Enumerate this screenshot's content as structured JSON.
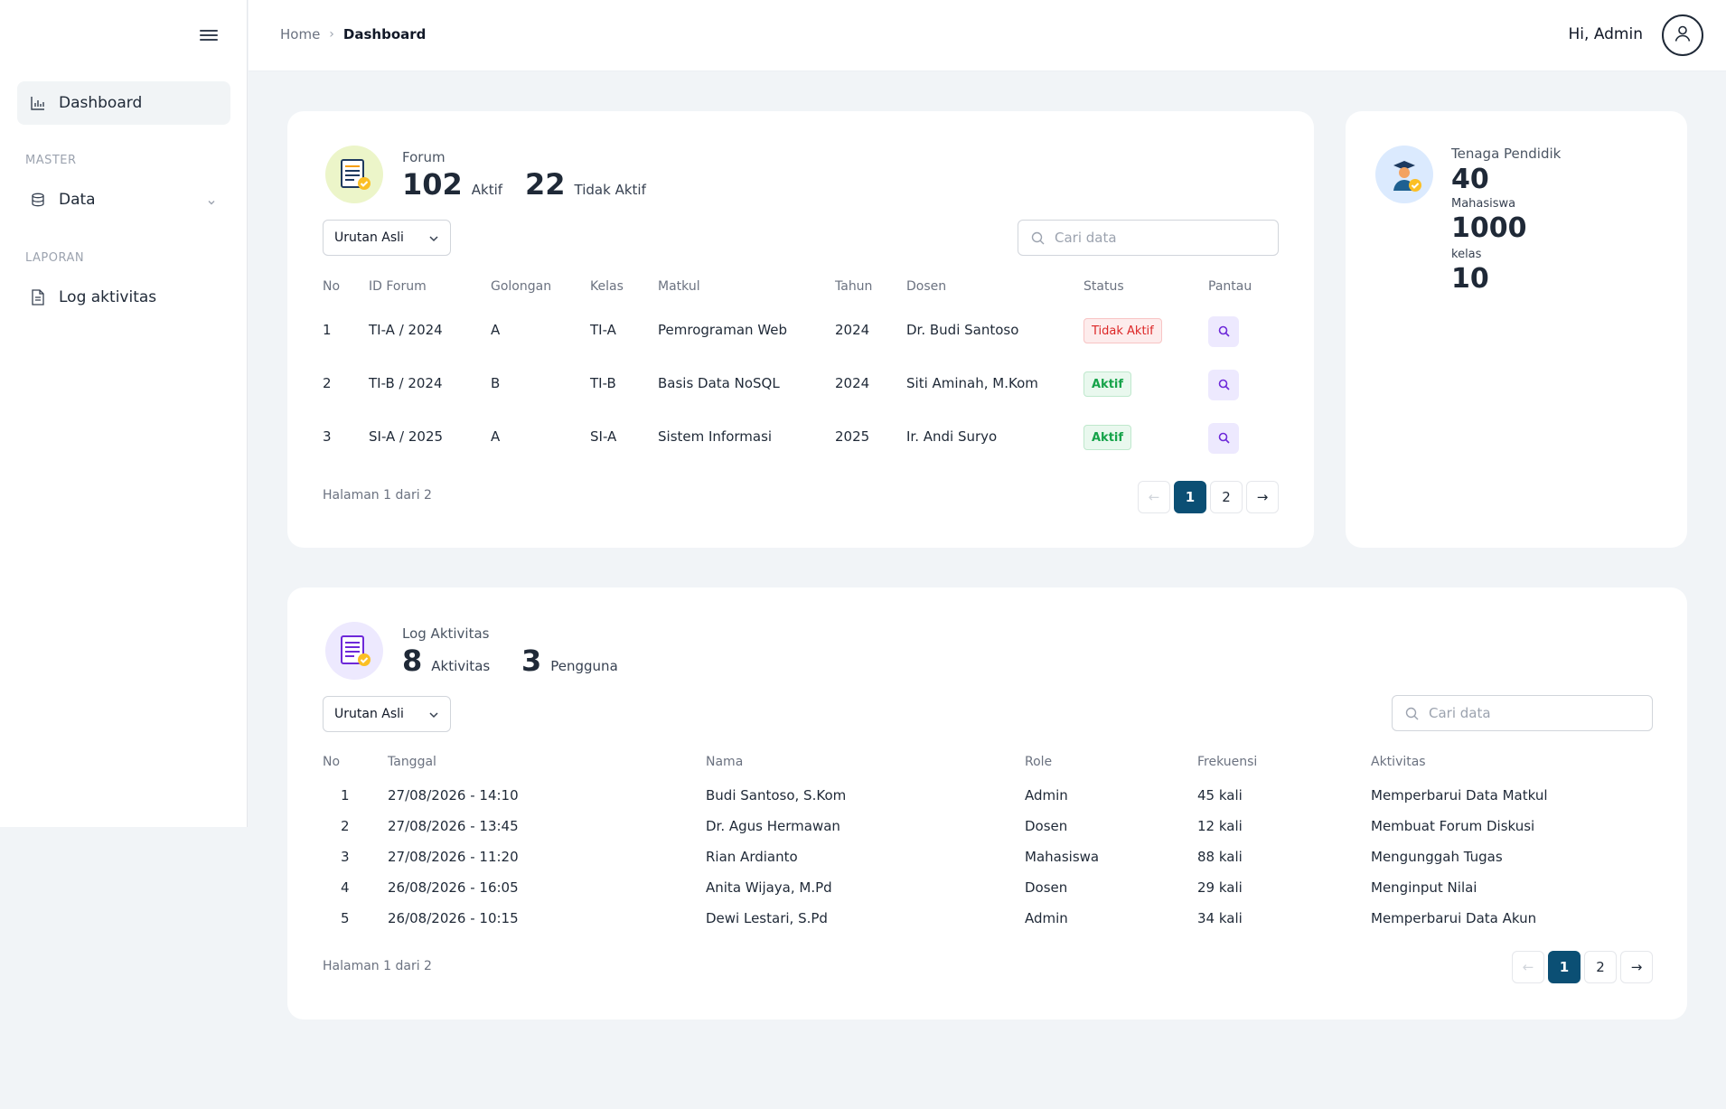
{
  "sidebar": {
    "items": [
      {
        "label": "Dashboard"
      },
      {
        "label": "Data"
      },
      {
        "label": "Log aktivitas"
      }
    ],
    "sections": [
      "MASTER",
      "LAPORAN"
    ]
  },
  "header": {
    "breadcrumb": {
      "home": "Home",
      "sep": "›",
      "current": "Dashboard"
    },
    "greeting": "Hi, Admin"
  },
  "forum": {
    "title": "Forum",
    "active_count": "102",
    "active_label": "Aktif",
    "inactive_count": "22",
    "inactive_label": "Tidak Aktif",
    "sort_value": "Urutan Asli",
    "search_placeholder": "Cari data",
    "columns": [
      "No",
      "ID Forum",
      "Golongan",
      "Kelas",
      "Matkul",
      "Tahun",
      "Dosen",
      "Status",
      "Pantau"
    ],
    "rows": [
      {
        "no": "1",
        "id": "TI-A / 2024",
        "golongan": "A",
        "kelas": "TI-A",
        "matkul": "Pemrograman Web",
        "tahun": "2024",
        "dosen": "Dr. Budi Santoso",
        "status": "Tidak Aktif"
      },
      {
        "no": "2",
        "id": "TI-B / 2024",
        "golongan": "B",
        "kelas": "TI-B",
        "matkul": "Basis Data NoSQL",
        "tahun": "2024",
        "dosen": "Siti Aminah, M.Kom",
        "status": "Aktif"
      },
      {
        "no": "3",
        "id": "SI-A / 2025",
        "golongan": "A",
        "kelas": "SI-A",
        "matkul": "Sistem Informasi",
        "tahun": "2025",
        "dosen": "Ir. Andi Suryo",
        "status": "Aktif"
      }
    ],
    "page_info": "Halaman 1 dari 2",
    "pager": {
      "prev": "←",
      "pages": [
        "1",
        "2"
      ],
      "next": "→",
      "current": "1"
    }
  },
  "tenaga": {
    "title": "Tenaga Pendidik",
    "value": "40",
    "mahasiswa_label": "Mahasiswa",
    "mahasiswa_value": "1000",
    "kelas_label": "kelas",
    "kelas_value": "10"
  },
  "log": {
    "title": "Log Aktivitas",
    "activity_count": "8",
    "activity_label": "Aktivitas",
    "user_count": "3",
    "user_label": "Pengguna",
    "sort_value": "Urutan Asli",
    "search_placeholder": "Cari data",
    "columns": [
      "No",
      "Tanggal",
      "Nama",
      "Role",
      "Frekuensi",
      "Aktivitas"
    ],
    "rows": [
      {
        "no": "1",
        "tanggal": "27/08/2026 - 14:10",
        "nama": "Budi Santoso, S.Kom",
        "role": "Admin",
        "frekuensi": "45 kali",
        "aktivitas": "Memperbarui Data Matkul"
      },
      {
        "no": "2",
        "tanggal": "27/08/2026 - 13:45",
        "nama": "Dr. Agus Hermawan",
        "role": "Dosen",
        "frekuensi": "12 kali",
        "aktivitas": "Membuat Forum Diskusi"
      },
      {
        "no": "3",
        "tanggal": "27/08/2026 - 11:20",
        "nama": "Rian Ardianto",
        "role": "Mahasiswa",
        "frekuensi": "88 kali",
        "aktivitas": "Mengunggah Tugas"
      },
      {
        "no": "4",
        "tanggal": "26/08/2026 - 16:05",
        "nama": "Anita Wijaya, M.Pd",
        "role": "Dosen",
        "frekuensi": "29 kali",
        "aktivitas": "Menginput Nilai"
      },
      {
        "no": "5",
        "tanggal": "26/08/2026 - 10:15",
        "nama": "Dewi Lestari, S.Pd",
        "role": "Admin",
        "frekuensi": "34 kali",
        "aktivitas": "Memperbarui Data Akun"
      }
    ],
    "page_info": "Halaman 1 dari 2",
    "pager": {
      "prev": "←",
      "pages": [
        "1",
        "2"
      ],
      "next": "→",
      "current": "1"
    }
  },
  "icons": {
    "menu": "hamburger-icon",
    "dashboard": "bar-chart-icon",
    "data": "database-icon",
    "log": "document-icon",
    "user": "user-icon",
    "search": "search-icon",
    "monitor": "magnifier-icon"
  },
  "colors": {
    "primary": "#0b4f74",
    "status_active": "#16a34a",
    "status_inactive": "#dc2626",
    "pantau_bg": "#ede9fe"
  }
}
